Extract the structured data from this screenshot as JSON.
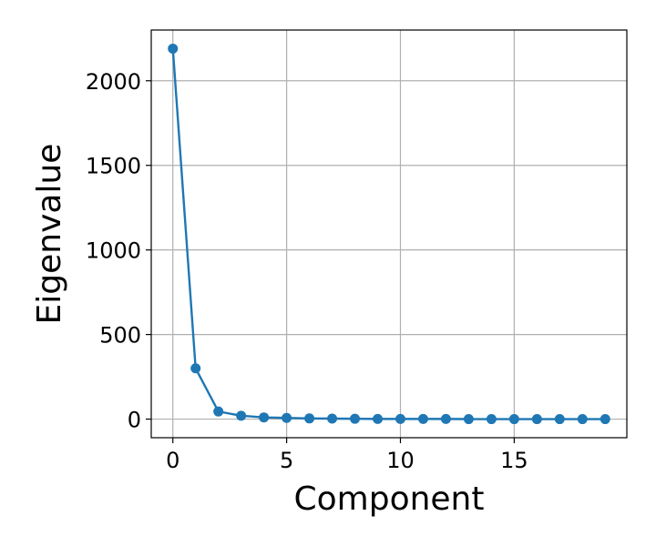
{
  "chart_data": {
    "type": "line",
    "title": "",
    "xlabel": "Component",
    "ylabel": "Eigenvalue",
    "xlim": [
      -0.95,
      19.95
    ],
    "ylim": [
      -110,
      2300
    ],
    "xticks": [
      0,
      5,
      10,
      15
    ],
    "xtick_labels": [
      "0",
      "5",
      "10",
      "15"
    ],
    "yticks": [
      0,
      500,
      1000,
      1500,
      2000
    ],
    "ytick_labels": [
      "0",
      "500",
      "1000",
      "1500",
      "2000"
    ],
    "grid": true,
    "legend": "none",
    "series": [
      {
        "color": "#1f77b4",
        "marker": "circle",
        "x": [
          0,
          1,
          2,
          3,
          4,
          5,
          6,
          7,
          8,
          9,
          10,
          11,
          12,
          13,
          14,
          15,
          16,
          17,
          18,
          19
        ],
        "y": [
          2190,
          300,
          45,
          20,
          10,
          7,
          4,
          3,
          2,
          1,
          1,
          1,
          1,
          0,
          0,
          0,
          0,
          0,
          0,
          0
        ]
      }
    ]
  }
}
